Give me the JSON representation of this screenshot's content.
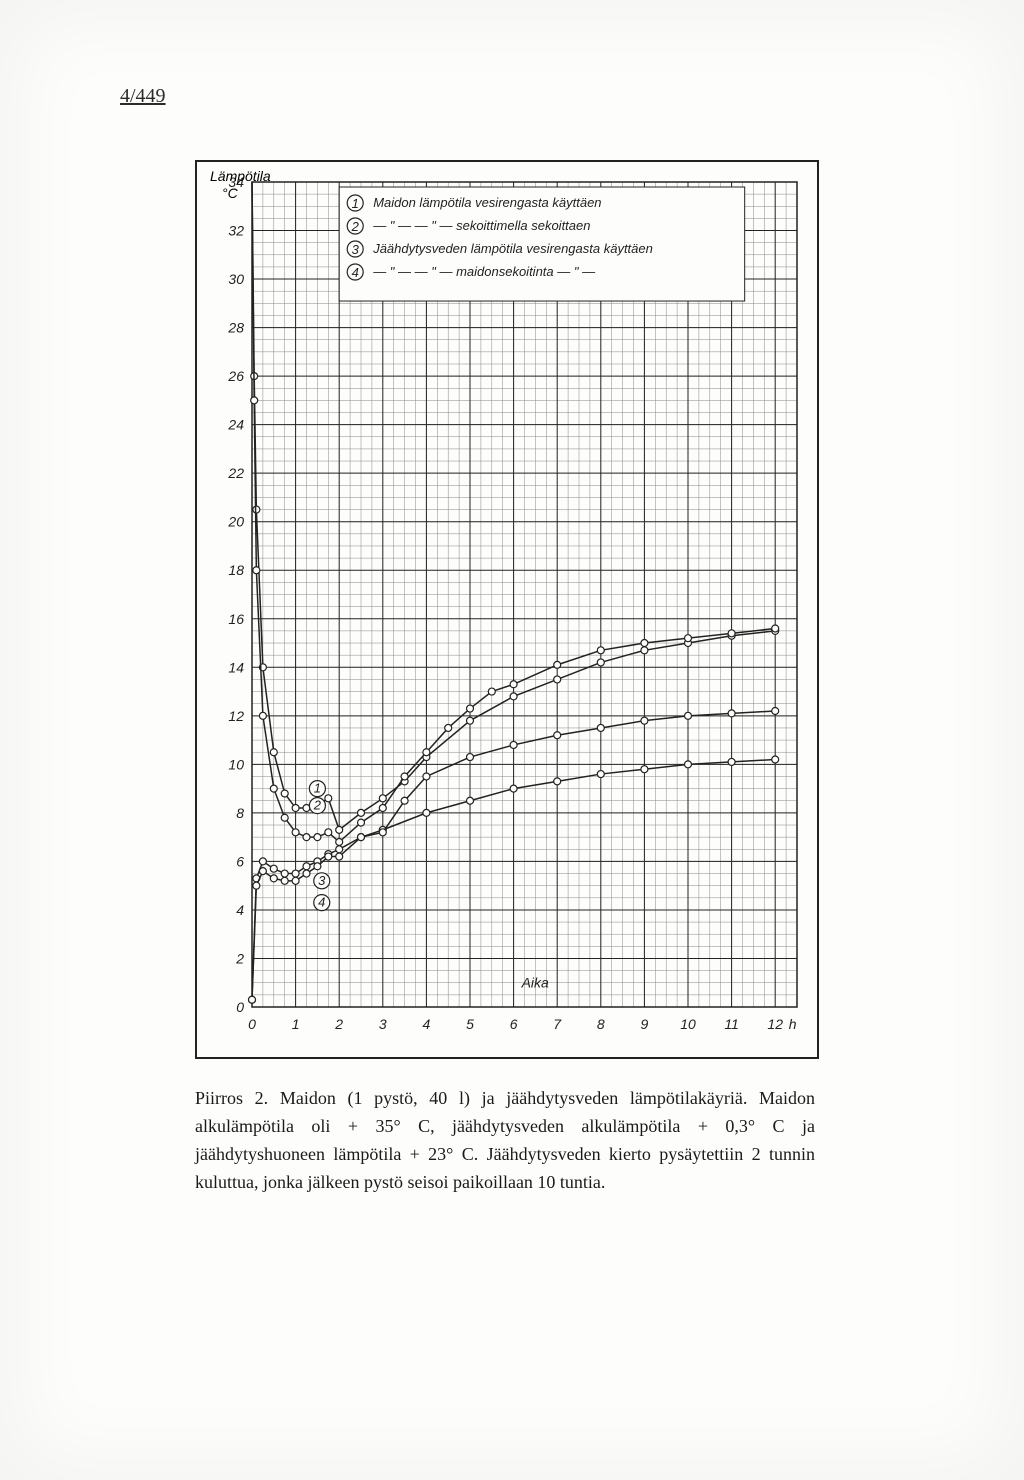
{
  "page_number": "4/449",
  "chart": {
    "type": "line",
    "y_axis": {
      "title": "Lämpötila",
      "unit": "°C",
      "min": 0,
      "max": 34,
      "major_step": 2,
      "minor_step": 0.5,
      "label_fontsize": 14
    },
    "x_axis": {
      "title": "Aika",
      "unit": "h",
      "min": 0,
      "max": 12.5,
      "major_step": 1,
      "minor_step": 0.25,
      "label_fontsize": 14
    },
    "background_color": "#fdfdfb",
    "grid_color_minor": "#888888",
    "grid_color_major": "#222222",
    "line_color": "#222222",
    "marker_fill": "#fdfdfb",
    "marker_radius": 3.5,
    "legend": {
      "items": [
        {
          "id": "1",
          "text": "Maidon lämpötila vesirengasta käyttäen"
        },
        {
          "id": "2",
          "text": "— \" —       — \" —    sekoittimella sekoittaen"
        },
        {
          "id": "3",
          "text": "Jäähdytysveden lämpötila vesirengasta käyttäen"
        },
        {
          "id": "4",
          "text": "— \" —             — \" —   maidonsekoitinta — \" —"
        }
      ]
    },
    "series": [
      {
        "id": "1",
        "label_pos_x": 1.5,
        "label_pos_y": 9,
        "points": [
          [
            0,
            35
          ],
          [
            0.05,
            26
          ],
          [
            0.1,
            20.5
          ],
          [
            0.25,
            14
          ],
          [
            0.5,
            10.5
          ],
          [
            0.75,
            8.8
          ],
          [
            1,
            8.2
          ],
          [
            1.25,
            8.2
          ],
          [
            1.5,
            8.3
          ],
          [
            1.75,
            8.6
          ],
          [
            2,
            7.3
          ],
          [
            2.5,
            8
          ],
          [
            3,
            8.6
          ],
          [
            3.5,
            9.3
          ],
          [
            4,
            10.3
          ],
          [
            5,
            11.8
          ],
          [
            6,
            12.8
          ],
          [
            7,
            13.5
          ],
          [
            8,
            14.2
          ],
          [
            9,
            14.7
          ],
          [
            10,
            15.0
          ],
          [
            11,
            15.3
          ],
          [
            12,
            15.5
          ]
        ]
      },
      {
        "id": "2",
        "label_pos_x": 1.5,
        "label_pos_y": 8.3,
        "points": [
          [
            0,
            35
          ],
          [
            0.05,
            25
          ],
          [
            0.1,
            18
          ],
          [
            0.25,
            12
          ],
          [
            0.5,
            9
          ],
          [
            0.75,
            7.8
          ],
          [
            1,
            7.2
          ],
          [
            1.25,
            7
          ],
          [
            1.5,
            7
          ],
          [
            1.75,
            7.2
          ],
          [
            2,
            6.8
          ],
          [
            2.5,
            7.6
          ],
          [
            3,
            8.2
          ],
          [
            3.5,
            9.5
          ],
          [
            4,
            10.5
          ],
          [
            4.5,
            11.5
          ],
          [
            5,
            12.3
          ],
          [
            5.5,
            13
          ],
          [
            6,
            13.3
          ],
          [
            7,
            14.1
          ],
          [
            8,
            14.7
          ],
          [
            9,
            15.0
          ],
          [
            10,
            15.2
          ],
          [
            11,
            15.4
          ],
          [
            12,
            15.6
          ]
        ]
      },
      {
        "id": "3",
        "label_pos_x": 1.6,
        "label_pos_y": 5.2,
        "points": [
          [
            0,
            0.3
          ],
          [
            0.1,
            5.3
          ],
          [
            0.25,
            6
          ],
          [
            0.5,
            5.7
          ],
          [
            0.75,
            5.5
          ],
          [
            1,
            5.5
          ],
          [
            1.25,
            5.8
          ],
          [
            1.5,
            6
          ],
          [
            1.75,
            6.3
          ],
          [
            2,
            6.5
          ],
          [
            2.5,
            7
          ],
          [
            3,
            7.3
          ],
          [
            4,
            8
          ],
          [
            5,
            8.5
          ],
          [
            6,
            9
          ],
          [
            7,
            9.3
          ],
          [
            8,
            9.6
          ],
          [
            9,
            9.8
          ],
          [
            10,
            10
          ],
          [
            11,
            10.1
          ],
          [
            12,
            10.2
          ]
        ]
      },
      {
        "id": "4",
        "label_pos_x": 1.6,
        "label_pos_y": 4.3,
        "points": [
          [
            0,
            0.3
          ],
          [
            0.1,
            5
          ],
          [
            0.25,
            5.6
          ],
          [
            0.5,
            5.3
          ],
          [
            0.75,
            5.2
          ],
          [
            1,
            5.2
          ],
          [
            1.25,
            5.5
          ],
          [
            1.5,
            5.8
          ],
          [
            1.75,
            6.2
          ],
          [
            2,
            6.2
          ],
          [
            2.5,
            7
          ],
          [
            3,
            7.2
          ],
          [
            3.5,
            8.5
          ],
          [
            4,
            9.5
          ],
          [
            5,
            10.3
          ],
          [
            6,
            10.8
          ],
          [
            7,
            11.2
          ],
          [
            8,
            11.5
          ],
          [
            9,
            11.8
          ],
          [
            10,
            12
          ],
          [
            11,
            12.1
          ],
          [
            12,
            12.2
          ]
        ]
      }
    ]
  },
  "caption": {
    "text": "Piirros 2. Maidon (1 pystö, 40 l) ja jäähdytysveden lämpötilakäyriä. Maidon alkulämpötila oli + 35° C, jäähdytysveden alkulämpötila + 0,3° C ja jäähdytyshuoneen lämpötila + 23° C. Jäähdytysveden kierto pysäytettiin 2 tunnin kuluttua, jonka jälkeen pystö seisoi paikoillaan 10 tuntia."
  }
}
